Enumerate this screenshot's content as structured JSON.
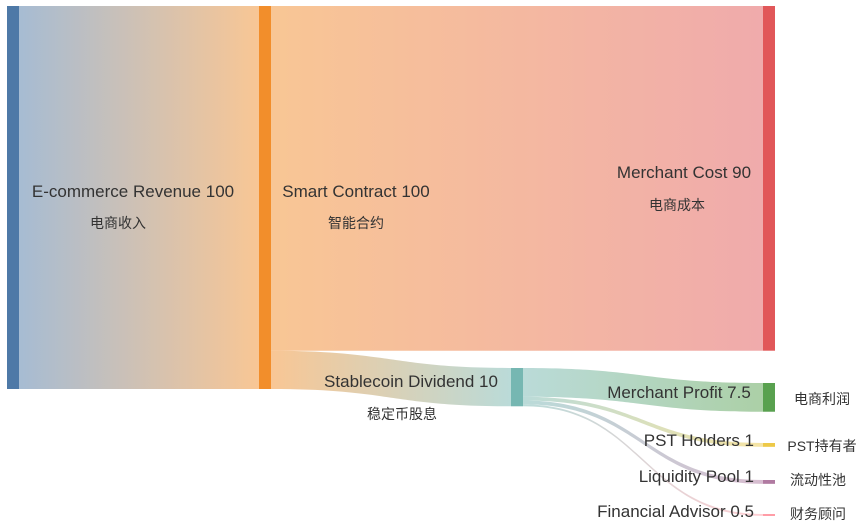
{
  "chart_data": {
    "type": "sankey",
    "unit": "",
    "nodes": [
      {
        "id": "revenue",
        "label": "E-commerce Revenue",
        "value": 100,
        "label_cn": "电商收入",
        "color": "#4e79a7"
      },
      {
        "id": "contract",
        "label": "Smart Contract",
        "value": 100,
        "label_cn": "智能合约",
        "color": "#f28e2b"
      },
      {
        "id": "dividend",
        "label": "Stablecoin Dividend",
        "value": 10,
        "label_cn": "稳定币股息",
        "color": "#76b7b2"
      },
      {
        "id": "cost",
        "label": "Merchant Cost",
        "value": 90,
        "label_cn": "电商成本",
        "color": "#e15759"
      },
      {
        "id": "profit",
        "label": "Merchant Profit",
        "value": 7.5,
        "label_cn": "电商利润",
        "color": "#59a14f"
      },
      {
        "id": "pst",
        "label": "PST Holders",
        "value": 1,
        "label_cn": "PST持有者",
        "color": "#edc948"
      },
      {
        "id": "pool",
        "label": "Liquidity Pool",
        "value": 1,
        "label_cn": "流动性池",
        "color": "#b07aa1"
      },
      {
        "id": "advisor",
        "label": "Financial Advisor",
        "value": 0.5,
        "label_cn": "财务顾问",
        "color": "#ff9da7"
      }
    ],
    "links": [
      {
        "source": "revenue",
        "target": "contract",
        "value": 100
      },
      {
        "source": "contract",
        "target": "cost",
        "value": 90
      },
      {
        "source": "contract",
        "target": "dividend",
        "value": 10
      },
      {
        "source": "dividend",
        "target": "profit",
        "value": 7.5
      },
      {
        "source": "dividend",
        "target": "pst",
        "value": 1
      },
      {
        "source": "dividend",
        "target": "pool",
        "value": 1
      },
      {
        "source": "dividend",
        "target": "advisor",
        "value": 0.5
      }
    ]
  }
}
